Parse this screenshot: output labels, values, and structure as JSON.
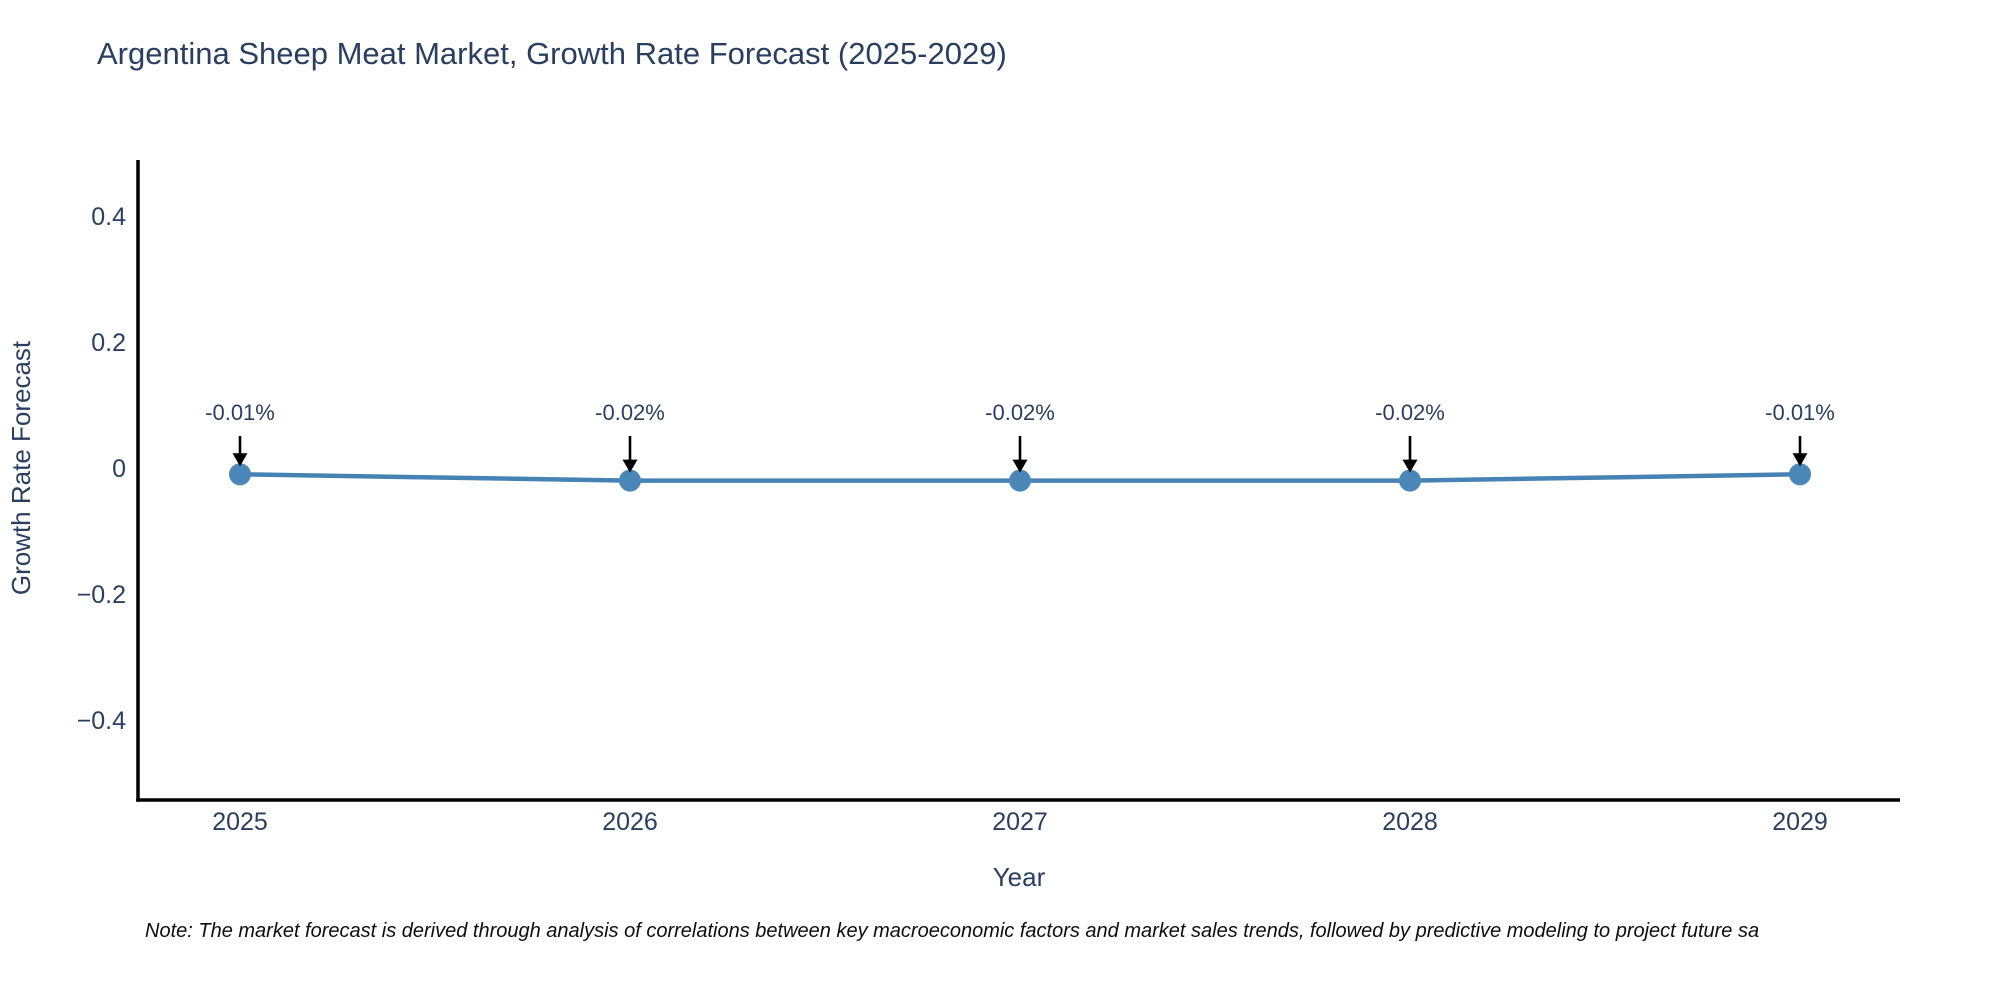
{
  "chart_data": {
    "type": "line",
    "title": "Argentina Sheep Meat Market, Growth Rate Forecast (2025-2029)",
    "xlabel": "Year",
    "ylabel": "Growth Rate Forecast",
    "categories": [
      "2025",
      "2026",
      "2027",
      "2028",
      "2029"
    ],
    "x": [
      2025,
      2026,
      2027,
      2028,
      2029
    ],
    "values": [
      -0.01,
      -0.02,
      -0.02,
      -0.02,
      -0.01
    ],
    "point_labels": [
      "-0.01%",
      "-0.02%",
      "-0.02%",
      "-0.02%",
      "-0.01%"
    ],
    "ylim": [
      -0.52,
      0.52
    ],
    "yticks": [
      0.4,
      0.2,
      0,
      -0.2,
      -0.4
    ],
    "ytick_labels": [
      "0.4",
      "0.2",
      "0",
      "−0.2",
      "−0.4"
    ],
    "grid": false,
    "legend": "none",
    "colors": {
      "line": "#4682b4",
      "marker": "#4a86b8",
      "axis": "#000000",
      "text": "#2a3f5f",
      "annotation_text": "#2a3f5f",
      "arrow": "#000000"
    }
  },
  "note": "Note: The market forecast is derived through analysis of correlations between key macroeconomic factors and market sales trends, followed by predictive modeling to project future sa"
}
